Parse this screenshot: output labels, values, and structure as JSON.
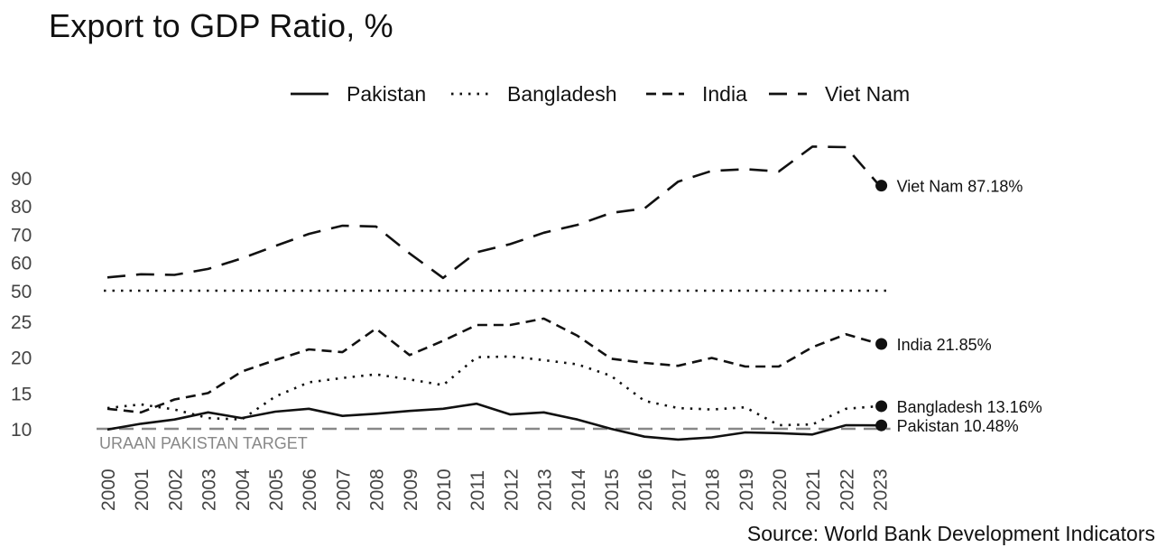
{
  "chart_data": {
    "type": "line",
    "title": "Export to GDP Ratio, %",
    "source": "Source: World Bank Development Indicators",
    "x": [
      "2000",
      "2001",
      "2002",
      "2003",
      "2004",
      "2005",
      "2006",
      "2007",
      "2008",
      "2009",
      "2010",
      "2011",
      "2012",
      "2013",
      "2014",
      "2015",
      "2016",
      "2017",
      "2018",
      "2019",
      "2020",
      "2021",
      "2022",
      "2023"
    ],
    "y_axis": {
      "tick_labels": [
        "10",
        "15",
        "20",
        "25",
        "50",
        "60",
        "70",
        "80",
        "90"
      ],
      "note": "broken axis: 10-25 lower segment, 50-90 upper segment"
    },
    "legend": {
      "placement": "top-center"
    },
    "series": [
      {
        "name": "Pakistan",
        "style": "solid",
        "values": [
          9.9,
          10.7,
          11.3,
          12.3,
          11.5,
          12.4,
          12.8,
          11.8,
          12.1,
          12.5,
          12.8,
          13.5,
          12.0,
          12.3,
          11.3,
          10.0,
          8.9,
          8.5,
          8.8,
          9.5,
          9.4,
          9.2,
          10.5,
          10.48
        ],
        "end_label": "Pakistan 10.48%"
      },
      {
        "name": "Bangladesh",
        "style": "dotted",
        "values": [
          12.9,
          13.4,
          12.7,
          11.5,
          11.3,
          14.5,
          16.5,
          17.1,
          17.6,
          16.9,
          16.1,
          20.0,
          20.1,
          19.6,
          19.0,
          17.4,
          13.9,
          12.9,
          12.7,
          13.0,
          10.5,
          10.6,
          12.8,
          13.16
        ],
        "end_label": "Bangladesh 13.16%"
      },
      {
        "name": "India",
        "style": "dashed",
        "values": [
          12.8,
          12.3,
          14.1,
          15.0,
          18.0,
          19.6,
          21.1,
          20.7,
          24.0,
          20.3,
          22.3,
          24.5,
          24.5,
          25.4,
          23.0,
          19.8,
          19.2,
          18.8,
          19.9,
          18.7,
          18.7,
          21.4,
          23.2,
          21.85
        ],
        "end_label": "India 21.85%"
      },
      {
        "name": "Viet Nam",
        "style": "long-dashed",
        "values": [
          54.7,
          55.8,
          55.6,
          57.7,
          61.4,
          65.8,
          70.1,
          73.0,
          72.7,
          63.2,
          54.5,
          63.6,
          66.5,
          70.5,
          73.3,
          77.5,
          79.1,
          88.6,
          92.4,
          93.0,
          92.2,
          101.0,
          100.8,
          87.18
        ],
        "end_label": "Viet Nam 87.18%"
      },
      {
        "name": "URAAN PAKISTAN TARGET",
        "style": "reference",
        "values": [
          10,
          10,
          10,
          10,
          10,
          10,
          10,
          10,
          10,
          10,
          10,
          10,
          10,
          10,
          10,
          10,
          10,
          10,
          10,
          10,
          10,
          10,
          10,
          10
        ]
      },
      {
        "name": "",
        "style": "axis-break",
        "values": [
          50,
          50,
          50,
          50,
          50,
          50,
          50,
          50,
          50,
          50,
          50,
          50,
          50,
          50,
          50,
          50,
          50,
          50,
          50,
          50,
          50,
          50,
          50,
          50
        ]
      }
    ],
    "target_label": "URAAN PAKISTAN TARGET",
    "grid": false
  }
}
